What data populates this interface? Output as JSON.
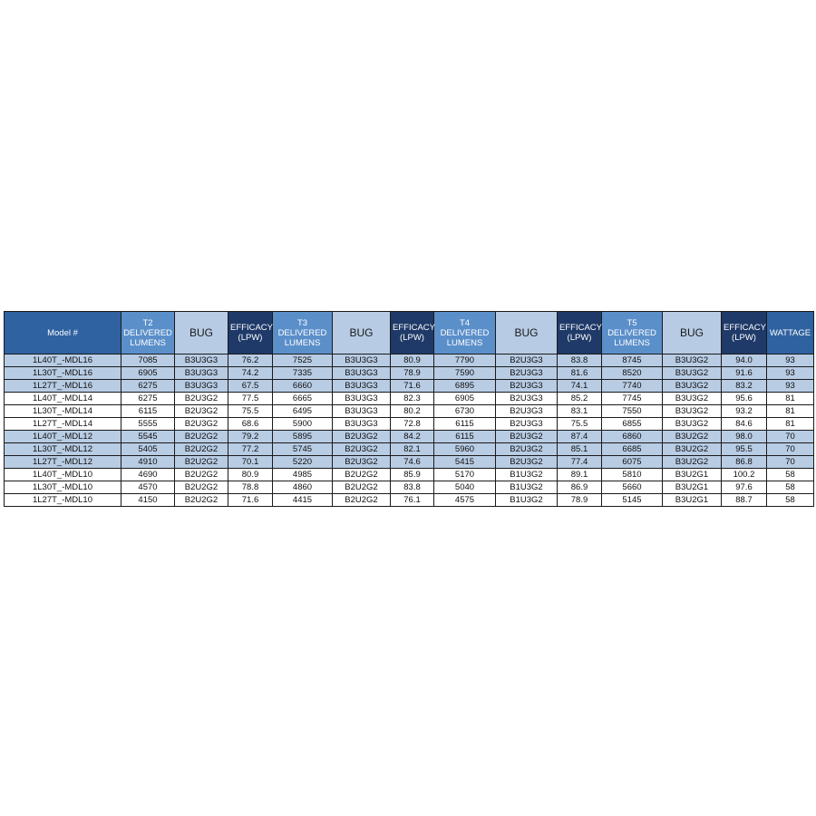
{
  "table": {
    "headers": [
      "Model #",
      "T2 DELIVERED LUMENS",
      "BUG",
      "EFFICACY (LPW)",
      "T3 DELIVERED LUMENS",
      "BUG",
      "EFFICACY (LPW)",
      "T4 DELIVERED LUMENS",
      "BUG",
      "EFFICACY (LPW)",
      "T5 DELIVERED LUMENS",
      "BUG",
      "EFFICACY (LPW)",
      "WATTAGE"
    ],
    "rows": [
      [
        "1L40T_-MDL16",
        "7085",
        "B3U3G3",
        "76.2",
        "7525",
        "B3U3G3",
        "80.9",
        "7790",
        "B2U3G3",
        "83.8",
        "8745",
        "B3U3G2",
        "94.0",
        "93"
      ],
      [
        "1L30T_-MDL16",
        "6905",
        "B3U3G3",
        "74.2",
        "7335",
        "B3U3G3",
        "78.9",
        "7590",
        "B2U3G3",
        "81.6",
        "8520",
        "B3U3G2",
        "91.6",
        "93"
      ],
      [
        "1L27T_-MDL16",
        "6275",
        "B3U3G3",
        "67.5",
        "6660",
        "B3U3G3",
        "71.6",
        "6895",
        "B2U3G3",
        "74.1",
        "7740",
        "B3U3G2",
        "83.2",
        "93"
      ],
      [
        "1L40T_-MDL14",
        "6275",
        "B2U3G2",
        "77.5",
        "6665",
        "B3U3G3",
        "82.3",
        "6905",
        "B2U3G3",
        "85.2",
        "7745",
        "B3U3G2",
        "95.6",
        "81"
      ],
      [
        "1L30T_-MDL14",
        "6115",
        "B2U3G2",
        "75.5",
        "6495",
        "B3U3G3",
        "80.2",
        "6730",
        "B2U3G3",
        "83.1",
        "7550",
        "B3U3G2",
        "93.2",
        "81"
      ],
      [
        "1L27T_-MDL14",
        "5555",
        "B2U3G2",
        "68.6",
        "5900",
        "B3U3G3",
        "72.8",
        "6115",
        "B2U3G3",
        "75.5",
        "6855",
        "B3U3G2",
        "84.6",
        "81"
      ],
      [
        "1L40T_-MDL12",
        "5545",
        "B2U2G2",
        "79.2",
        "5895",
        "B2U3G2",
        "84.2",
        "6115",
        "B2U3G2",
        "87.4",
        "6860",
        "B3U2G2",
        "98.0",
        "70"
      ],
      [
        "1L30T_-MDL12",
        "5405",
        "B2U2G2",
        "77.2",
        "5745",
        "B2U3G2",
        "82.1",
        "5960",
        "B2U3G2",
        "85.1",
        "6685",
        "B3U2G2",
        "95.5",
        "70"
      ],
      [
        "1L27T_-MDL12",
        "4910",
        "B2U2G2",
        "70.1",
        "5220",
        "B2U3G2",
        "74.6",
        "5415",
        "B2U3G2",
        "77.4",
        "6075",
        "B3U2G2",
        "86.8",
        "70"
      ],
      [
        "1L40T_-MDL10",
        "4690",
        "B2U2G2",
        "80.9",
        "4985",
        "B2U2G2",
        "85.9",
        "5170",
        "B1U3G2",
        "89.1",
        "5810",
        "B3U2G1",
        "100.2",
        "58"
      ],
      [
        "1L30T_-MDL10",
        "4570",
        "B2U2G2",
        "78.8",
        "4860",
        "B2U2G2",
        "83.8",
        "5040",
        "B1U3G2",
        "86.9",
        "5660",
        "B3U2G1",
        "97.6",
        "58"
      ],
      [
        "1L27T_-MDL10",
        "4150",
        "B2U2G2",
        "71.6",
        "4415",
        "B2U2G2",
        "76.1",
        "4575",
        "B1U3G2",
        "78.9",
        "5145",
        "B3U2G1",
        "88.7",
        "58"
      ]
    ]
  }
}
